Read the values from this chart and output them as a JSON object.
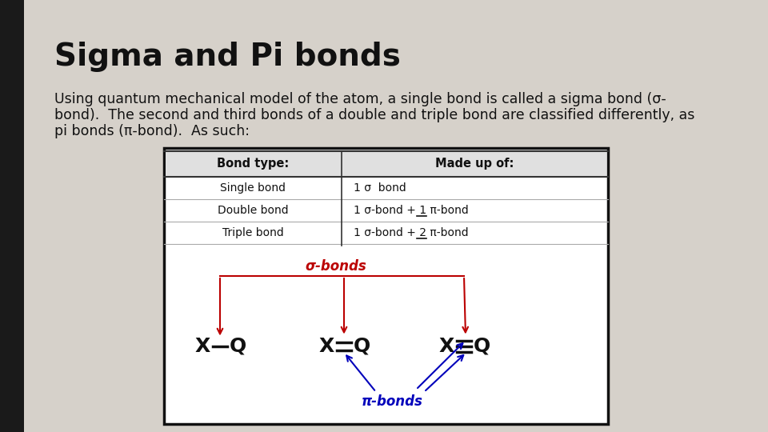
{
  "background_color": "#d6d1ca",
  "left_bar_color": "#1a1a1a",
  "title": "Sigma and Pi bonds",
  "title_fontsize": 28,
  "body_text_line1": "Using quantum mechanical model of the atom, a single bond is called a sigma bond (σ-",
  "body_text_line2": "bond).  The second and third bonds of a double and triple bond are classified differently, as",
  "body_text_line3": "pi bonds (π-bond).  As such:",
  "body_fontsize": 12.5,
  "table_headers": [
    "Bond type:",
    "Made up of:"
  ],
  "table_row1_left": "Single bond",
  "table_row1_right": "1 σ  bond",
  "table_row2_left": "Double bond",
  "table_row2_right": "1 σ-bond + 1 π-bond",
  "table_row3_left": "Triple bond",
  "table_row3_right": "1 σ-bond + 2 π-bond",
  "sigma_label": "σ-bonds",
  "pi_label": "π-bonds",
  "red_color": "#bb0000",
  "blue_color": "#0000bb",
  "dark_color": "#111111",
  "box_outline": "#111111",
  "white": "#ffffff",
  "header_bg": "#e0e0e0"
}
